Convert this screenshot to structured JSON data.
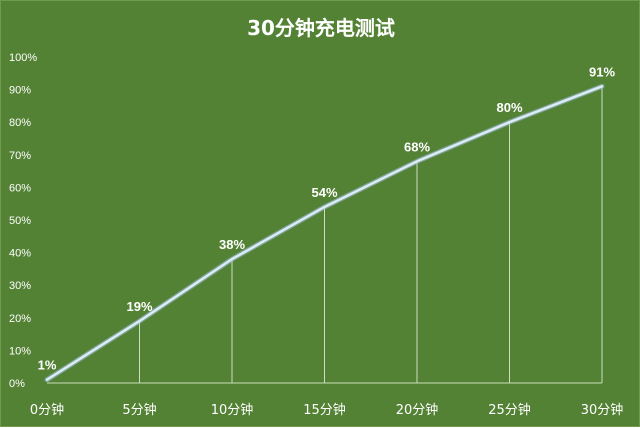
{
  "chart_data": {
    "type": "line",
    "title": "30分钟充电测试",
    "xlabel": "",
    "ylabel": "",
    "categories": [
      "0分钟",
      "5分钟",
      "10分钟",
      "15分钟",
      "20分钟",
      "25分钟",
      "30分钟"
    ],
    "values": [
      1,
      19,
      38,
      54,
      68,
      80,
      91
    ],
    "data_labels": [
      "1%",
      "19%",
      "38%",
      "54%",
      "68%",
      "80%",
      "91%"
    ],
    "ylim": [
      0,
      100
    ],
    "y_ticks": [
      0,
      10,
      20,
      30,
      40,
      50,
      60,
      70,
      80,
      90,
      100
    ],
    "y_tick_labels": [
      "0%",
      "10%",
      "20%",
      "30%",
      "40%",
      "50%",
      "60%",
      "70%",
      "80%",
      "90%",
      "100%"
    ],
    "grid": false,
    "drop_lines": true,
    "legend": "none",
    "colors": {
      "background": "#548235",
      "line": "#ddebf7",
      "line_glow": "#9dc3e6",
      "drop_line": "#e2efda",
      "axis": "#c9ddb8",
      "text": "#ffffff"
    }
  }
}
